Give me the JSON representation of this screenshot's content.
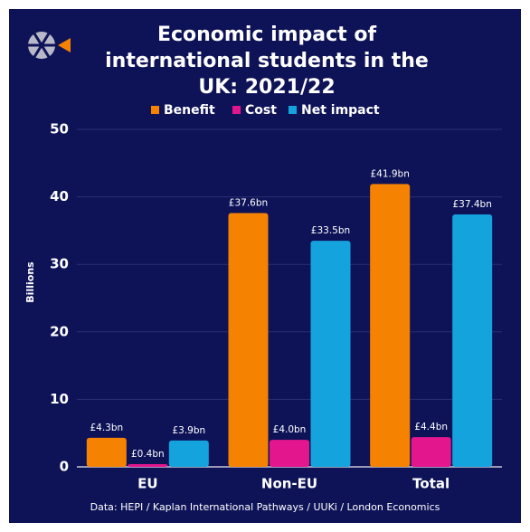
{
  "chart_data": {
    "type": "bar",
    "title": "Economic impact of international students in the UK: 2021/22",
    "ylabel": "Billions",
    "source": "Data: HEPI / Kaplan International Pathways / UUKi / London Economics",
    "categories": [
      "EU",
      "Non-EU",
      "Total"
    ],
    "series": [
      {
        "name": "Benefit",
        "color": "#f58200",
        "values": [
          4.3,
          37.6,
          41.9
        ],
        "value_labels": [
          "£4.3bn",
          "£37.6bn",
          "£41.9bn"
        ]
      },
      {
        "name": "Cost",
        "color": "#e3168e",
        "values": [
          0.4,
          4.0,
          4.4
        ],
        "value_labels": [
          "£0.4bn",
          "£4.0bn",
          "£4.4bn"
        ]
      },
      {
        "name": "Net impact",
        "color": "#14a3dd",
        "values": [
          3.9,
          33.5,
          37.4
        ],
        "value_labels": [
          "£3.9bn",
          "£33.5bn",
          "£37.4bn"
        ]
      }
    ],
    "ylim": [
      0,
      50
    ],
    "yticks": [
      0,
      10,
      20,
      30,
      40,
      50
    ],
    "grid": true
  }
}
